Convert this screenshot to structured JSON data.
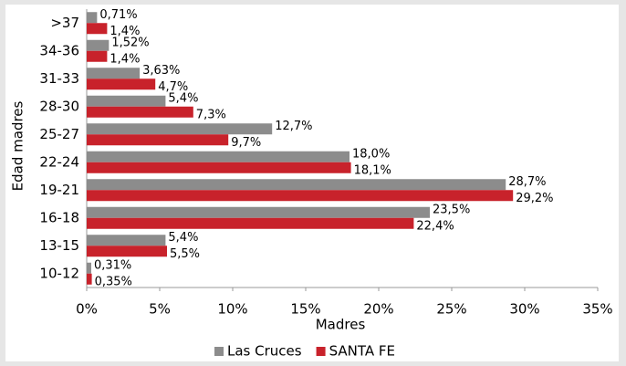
{
  "chart_data": {
    "type": "barh",
    "categories": [
      ">37",
      "34-36",
      "31-33",
      "28-30",
      "25-27",
      "22-24",
      "19-21",
      "16-18",
      "13-15",
      "10-12"
    ],
    "series": [
      {
        "name": "Las Cruces",
        "color": "#8c8c8c",
        "values": [
          0.71,
          1.52,
          3.63,
          5.4,
          12.7,
          18.0,
          28.7,
          23.5,
          5.4,
          0.31
        ],
        "value_labels": [
          "0,71%",
          "1,52%",
          "3,63%",
          "5,4%",
          "12,7%",
          "18,0%",
          "28,7%",
          "23,5%",
          "5,4%",
          "0,31%"
        ]
      },
      {
        "name": "SANTA FE",
        "color": "#c8222b",
        "values": [
          1.4,
          1.4,
          4.7,
          7.3,
          9.7,
          18.1,
          29.2,
          22.4,
          5.5,
          0.35
        ],
        "value_labels": [
          "1,4%",
          "1,4%",
          "4,7%",
          "7,3%",
          "9,7%",
          "18,1%",
          "29,2%",
          "22,4%",
          "5,5%",
          "0,35%"
        ]
      }
    ],
    "xlabel": "Madres",
    "ylabel": "Edad madres",
    "xlim": [
      0,
      35
    ],
    "xticks": [
      {
        "value": 0,
        "label": "0%"
      },
      {
        "value": 5,
        "label": "5%"
      },
      {
        "value": 10,
        "label": "10%"
      },
      {
        "value": 15,
        "label": "15%"
      },
      {
        "value": 20,
        "label": "20%"
      },
      {
        "value": 25,
        "label": "25%"
      },
      {
        "value": 30,
        "label": "30%"
      },
      {
        "value": 35,
        "label": "35%"
      }
    ],
    "legend": "bottom"
  }
}
